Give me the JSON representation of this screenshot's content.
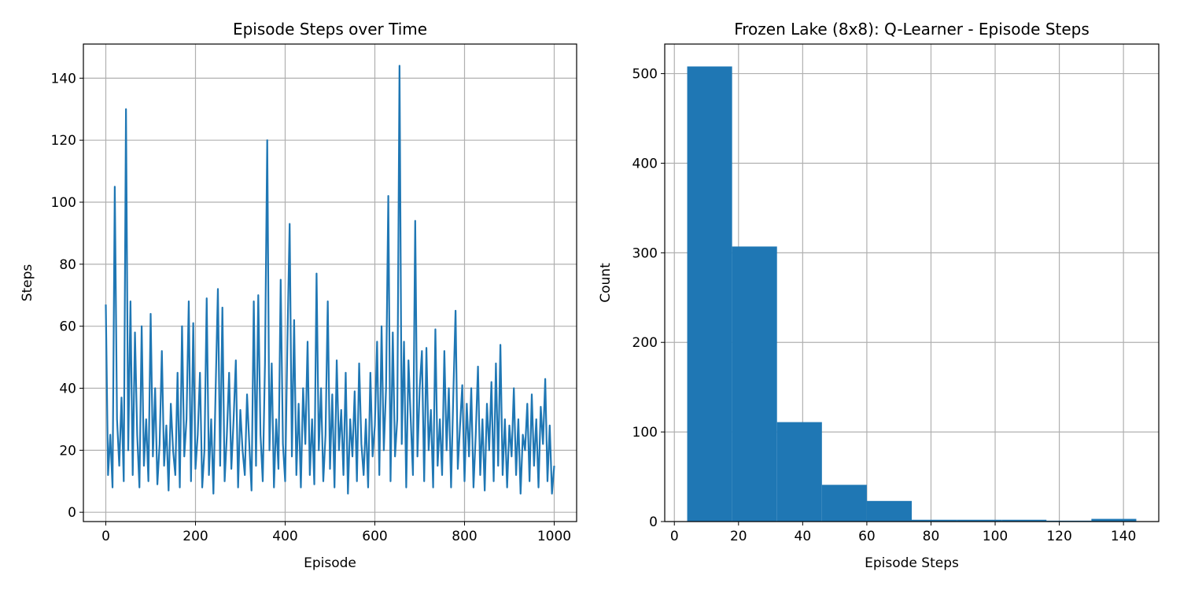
{
  "chart_data": [
    {
      "type": "line",
      "title": "Episode Steps over Time",
      "xlabel": "Episode",
      "ylabel": "Steps",
      "grid": true,
      "xlim": [
        -50,
        1050
      ],
      "ylim": [
        -3,
        151
      ],
      "xticks": [
        0,
        200,
        400,
        600,
        800,
        1000
      ],
      "yticks": [
        0,
        20,
        40,
        60,
        80,
        100,
        120,
        140
      ],
      "x": [
        0,
        5,
        10,
        15,
        20,
        25,
        30,
        35,
        40,
        45,
        50,
        55,
        60,
        65,
        70,
        75,
        80,
        85,
        90,
        95,
        100,
        105,
        110,
        115,
        120,
        125,
        130,
        135,
        140,
        145,
        150,
        155,
        160,
        165,
        170,
        175,
        180,
        185,
        190,
        195,
        200,
        205,
        210,
        215,
        220,
        225,
        230,
        235,
        240,
        245,
        250,
        255,
        260,
        265,
        270,
        275,
        280,
        285,
        290,
        295,
        300,
        305,
        310,
        315,
        320,
        325,
        330,
        335,
        340,
        345,
        350,
        355,
        360,
        365,
        370,
        375,
        380,
        385,
        390,
        395,
        400,
        405,
        410,
        415,
        420,
        425,
        430,
        435,
        440,
        445,
        450,
        455,
        460,
        465,
        470,
        475,
        480,
        485,
        490,
        495,
        500,
        505,
        510,
        515,
        520,
        525,
        530,
        535,
        540,
        545,
        550,
        555,
        560,
        565,
        570,
        575,
        580,
        585,
        590,
        595,
        600,
        605,
        610,
        615,
        620,
        625,
        630,
        635,
        640,
        645,
        650,
        655,
        660,
        665,
        670,
        675,
        680,
        685,
        690,
        695,
        700,
        705,
        710,
        715,
        720,
        725,
        730,
        735,
        740,
        745,
        750,
        755,
        760,
        765,
        770,
        775,
        780,
        785,
        790,
        795,
        800,
        805,
        810,
        815,
        820,
        825,
        830,
        835,
        840,
        845,
        850,
        855,
        860,
        865,
        870,
        875,
        880,
        885,
        890,
        895,
        900,
        905,
        910,
        915,
        920,
        925,
        930,
        935,
        940,
        945,
        950,
        955,
        960,
        965,
        970,
        975,
        980,
        985,
        990,
        995,
        1000
      ],
      "series": [
        {
          "name": "Steps",
          "color": "#1f77b4",
          "values": [
            67,
            12,
            25,
            8,
            105,
            30,
            15,
            37,
            10,
            130,
            20,
            68,
            12,
            58,
            25,
            8,
            60,
            15,
            30,
            10,
            64,
            18,
            40,
            9,
            22,
            52,
            15,
            28,
            7,
            35,
            20,
            12,
            45,
            8,
            60,
            18,
            30,
            68,
            10,
            61,
            14,
            25,
            45,
            8,
            20,
            69,
            12,
            30,
            6,
            40,
            72,
            15,
            66,
            10,
            25,
            45,
            14,
            30,
            49,
            8,
            33,
            20,
            12,
            38,
            22,
            7,
            68,
            15,
            70,
            25,
            10,
            48,
            120,
            20,
            48,
            8,
            30,
            14,
            75,
            22,
            10,
            55,
            93,
            18,
            62,
            12,
            35,
            8,
            40,
            22,
            55,
            12,
            30,
            9,
            77,
            20,
            40,
            10,
            25,
            68,
            14,
            38,
            8,
            49,
            20,
            33,
            12,
            45,
            6,
            30,
            18,
            39,
            10,
            48,
            22,
            12,
            30,
            8,
            45,
            18,
            28,
            55,
            12,
            60,
            20,
            40,
            102,
            10,
            58,
            18,
            30,
            144,
            22,
            55,
            8,
            49,
            30,
            12,
            94,
            18,
            40,
            52,
            10,
            53,
            20,
            33,
            8,
            59,
            15,
            30,
            12,
            52,
            20,
            40,
            8,
            38,
            65,
            14,
            28,
            41,
            10,
            35,
            18,
            40,
            8,
            25,
            47,
            12,
            30,
            7,
            35,
            20,
            42,
            10,
            48,
            15,
            54,
            12,
            30,
            8,
            28,
            18,
            40,
            12,
            30,
            6,
            25,
            20,
            35,
            10,
            38,
            15,
            30,
            8,
            34,
            22,
            43,
            10,
            28,
            6,
            15
          ]
        }
      ]
    },
    {
      "type": "histogram",
      "title": "Frozen Lake (8x8): Q-Learner - Episode Steps",
      "xlabel": "Episode Steps",
      "ylabel": "Count",
      "grid": true,
      "color": "#1f77b4",
      "xlim": [
        -3,
        151
      ],
      "ylim": [
        0,
        533
      ],
      "xticks": [
        0,
        20,
        40,
        60,
        80,
        100,
        120,
        140
      ],
      "yticks": [
        0,
        100,
        200,
        300,
        400,
        500
      ],
      "bins": [
        4,
        18,
        32,
        46,
        60,
        74,
        88,
        102,
        116,
        130,
        144
      ],
      "counts": [
        508,
        307,
        111,
        41,
        23,
        2,
        2,
        2,
        1,
        3
      ]
    }
  ]
}
